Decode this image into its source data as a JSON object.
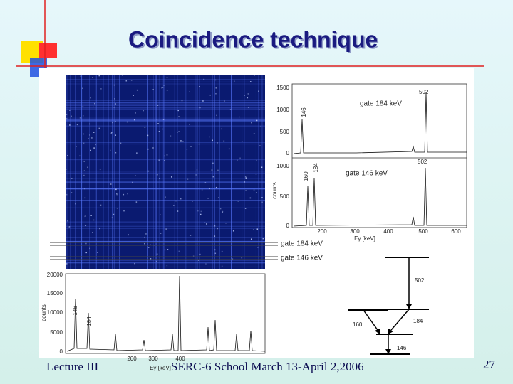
{
  "header": {
    "title": "Coincidence technique"
  },
  "figure": {
    "gated_spectra": {
      "panel_1": {
        "gate": "gate 184 keV",
        "yticks": [
          "1500",
          "1000",
          "500",
          "0"
        ],
        "peaks": [
          "146",
          "502"
        ]
      },
      "panel_2": {
        "gate": "gate 146 keV",
        "yticks": [
          "1000",
          "500",
          "0"
        ],
        "peaks": [
          "160",
          "184",
          "502"
        ]
      },
      "ylabel": "counts",
      "xticks": [
        "200",
        "300",
        "400",
        "500",
        "600"
      ],
      "xlabel": "Eγ [keV]"
    },
    "matrix_gates": [
      "gate 184 keV",
      "gate 146 keV"
    ],
    "projection": {
      "yticks": [
        "20000",
        "15000",
        "10000",
        "5000",
        "0"
      ],
      "ylabel": "counts",
      "peaks": [
        "146",
        "184"
      ],
      "xticks": [
        "200",
        "300",
        "400"
      ],
      "xlabel": "Eγ [keV]"
    },
    "level_scheme": {
      "transitions": [
        "502",
        "184",
        "160",
        "146"
      ]
    }
  },
  "footer": {
    "left": "Lecture III",
    "center": "SERC-6 School March 13-April 2,2006",
    "page": "27"
  }
}
